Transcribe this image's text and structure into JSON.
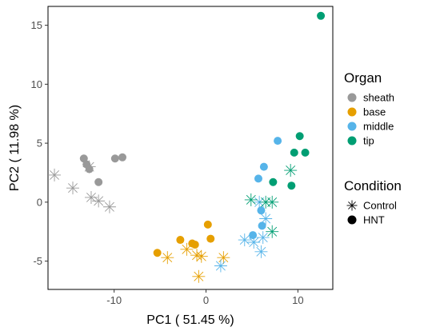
{
  "chart_data": {
    "type": "scatter",
    "xlabel": "PC1 ( 51.45 %)",
    "ylabel": "PC2 ( 11.98 %)",
    "xlim": [
      -17.2,
      13.8
    ],
    "ylim": [
      -7.4,
      16.6
    ],
    "xticks": [
      -10,
      0,
      10
    ],
    "yticks": [
      -5,
      0,
      5,
      10,
      15
    ],
    "grid": false,
    "legend_position": "right",
    "legends": {
      "organ": {
        "title": "Organ",
        "items": [
          {
            "label": "sheath",
            "color": "#999999"
          },
          {
            "label": "base",
            "color": "#E69F00"
          },
          {
            "label": "middle",
            "color": "#56B4E9"
          },
          {
            "label": "tip",
            "color": "#009E73"
          }
        ]
      },
      "condition": {
        "title": "Condition",
        "items": [
          {
            "label": "Control",
            "shape": "asterisk"
          },
          {
            "label": "HNT",
            "shape": "circle"
          }
        ]
      }
    },
    "series": [
      {
        "organ": "sheath",
        "condition": "Control",
        "points": [
          [
            -16.5,
            2.3
          ],
          [
            -14.5,
            1.2
          ],
          [
            -12.7,
            3.0
          ],
          [
            -12.5,
            0.4
          ],
          [
            -11.7,
            0.1
          ],
          [
            -10.5,
            -0.4
          ]
        ]
      },
      {
        "organ": "sheath",
        "condition": "HNT",
        "points": [
          [
            -13.3,
            3.7
          ],
          [
            -13.0,
            3.2
          ],
          [
            -12.7,
            2.8
          ],
          [
            -11.7,
            1.7
          ],
          [
            -9.9,
            3.7
          ],
          [
            -9.1,
            3.8
          ]
        ]
      },
      {
        "organ": "base",
        "condition": "Control",
        "points": [
          [
            -4.2,
            -4.7
          ],
          [
            -2.1,
            -4.0
          ],
          [
            -1.0,
            -4.5
          ],
          [
            -0.8,
            -6.3
          ],
          [
            -0.5,
            -4.6
          ],
          [
            1.9,
            -4.7
          ]
        ]
      },
      {
        "organ": "base",
        "condition": "HNT",
        "points": [
          [
            -5.3,
            -4.3
          ],
          [
            -2.8,
            -3.2
          ],
          [
            -1.5,
            -3.5
          ],
          [
            -1.2,
            -3.6
          ],
          [
            0.2,
            -1.9
          ],
          [
            0.5,
            -3.1
          ]
        ]
      },
      {
        "organ": "middle",
        "condition": "Control",
        "points": [
          [
            1.6,
            -5.4
          ],
          [
            4.2,
            -3.2
          ],
          [
            5.2,
            -3.4
          ],
          [
            6.0,
            -4.2
          ],
          [
            6.2,
            -3.0
          ],
          [
            5.8,
            0.0
          ],
          [
            6.5,
            -1.4
          ]
        ]
      },
      {
        "organ": "middle",
        "condition": "HNT",
        "points": [
          [
            5.1,
            -2.8
          ],
          [
            5.7,
            2.0
          ],
          [
            6.0,
            -0.7
          ],
          [
            6.1,
            -2.0
          ],
          [
            6.3,
            3.0
          ],
          [
            7.8,
            5.2
          ]
        ]
      },
      {
        "organ": "tip",
        "condition": "Control",
        "points": [
          [
            4.9,
            0.2
          ],
          [
            6.5,
            0.0
          ],
          [
            7.2,
            0.0
          ],
          [
            7.2,
            -2.5
          ],
          [
            9.2,
            2.7
          ]
        ]
      },
      {
        "organ": "tip",
        "condition": "HNT",
        "points": [
          [
            7.3,
            1.7
          ],
          [
            9.3,
            1.4
          ],
          [
            9.6,
            4.2
          ],
          [
            10.2,
            5.6
          ],
          [
            10.8,
            4.2
          ],
          [
            12.5,
            15.8
          ]
        ]
      }
    ]
  }
}
